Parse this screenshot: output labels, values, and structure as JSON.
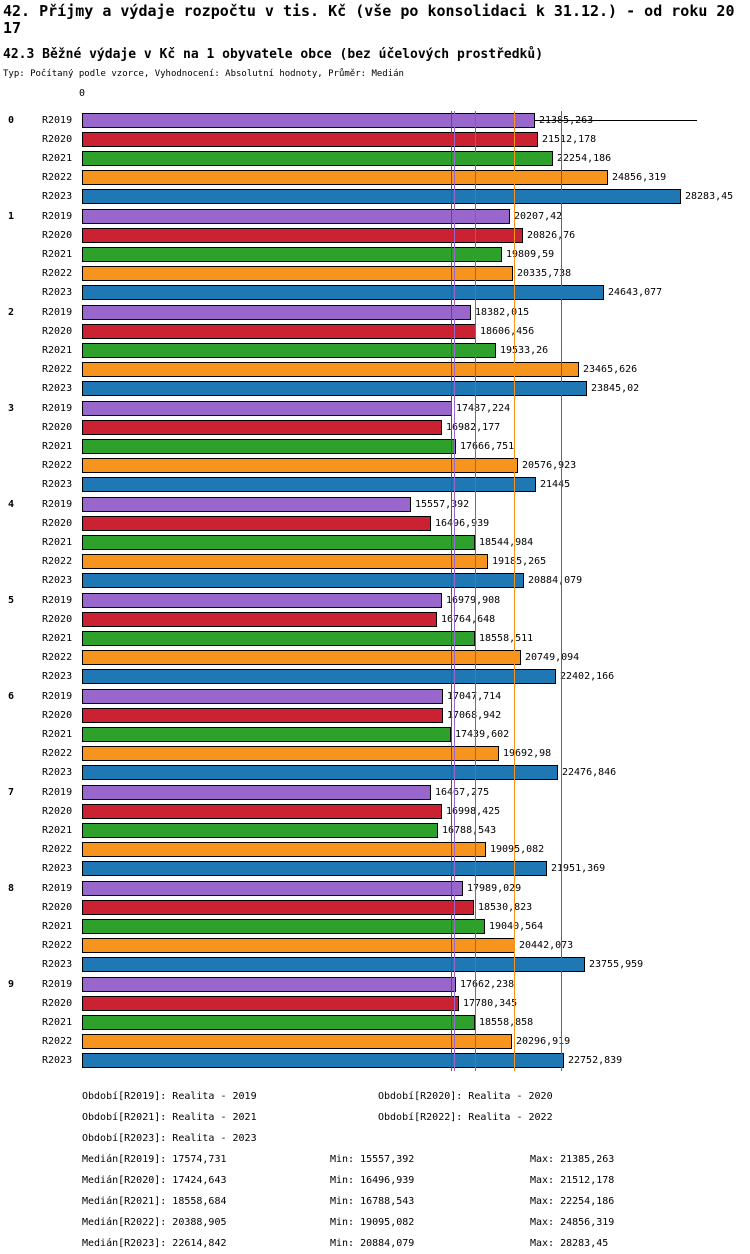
{
  "titles": {
    "line1": "42. Příjmy a výdaje rozpočtu v tis. Kč (vše po konsolidaci k 31.12.) - od roku 2017",
    "line2": "42.3 Běžné výdaje v Kč na 1 obyvatele obce (bez účelových prostředků)",
    "subtitle": "Typ: Počítaný podle vzorce, Vyhodnocení: Absolutní hodnoty, Průměr: Medián"
  },
  "axis": {
    "zero_label": "0",
    "max": 29040
  },
  "chart_data": {
    "type": "bar",
    "orientation": "horizontal",
    "title": "42.3 Běžné výdaje v Kč na 1 obyvatele obce (bez účelových prostředků)",
    "categories": [
      "0",
      "1",
      "2",
      "3",
      "4",
      "5",
      "6",
      "7",
      "8",
      "9"
    ],
    "xlim": [
      0,
      29040
    ],
    "grid": false,
    "legend_position": "bottom",
    "series": [
      {
        "name": "R2019",
        "color": "#9966CC",
        "median": 17574.731,
        "median_label": "17574,731",
        "values": [
          21385.263,
          20207.42,
          18382.015,
          17487.224,
          15557.392,
          16979.908,
          17047.714,
          16467.275,
          17989.029,
          17662.238
        ],
        "labels": [
          "21385,263",
          "20207,42",
          "18382,015",
          "17487,224",
          "15557,392",
          "16979,908",
          "17047,714",
          "16467,275",
          "17989,029",
          "17662,238"
        ]
      },
      {
        "name": "R2020",
        "color": "#CB2233",
        "median": 17424.643,
        "median_label": "17424,643",
        "values": [
          21512.178,
          20826.76,
          18606.456,
          16982.177,
          16496.939,
          16764.648,
          17068.942,
          16998.425,
          18530.823,
          17780.345
        ],
        "labels": [
          "21512,178",
          "20826,76",
          "18606,456",
          "16982,177",
          "16496,939",
          "16764,648",
          "17068,942",
          "16998,425",
          "18530,823",
          "17780,345"
        ]
      },
      {
        "name": "R2021",
        "color": "#2EA12C",
        "median": 18558.684,
        "median_label": "18558,684",
        "values": [
          22254.186,
          19809.59,
          19533.26,
          17666.751,
          18544.984,
          18558.511,
          17439.602,
          16788.543,
          19040.564,
          18558.858
        ],
        "labels": [
          "22254,186",
          "19809,59",
          "19533,26",
          "17666,751",
          "18544,984",
          "18558,511",
          "17439,602",
          "16788,543",
          "19040,564",
          "18558,858"
        ]
      },
      {
        "name": "R2022",
        "color": "#F7941E",
        "median": 20388.905,
        "median_label": "20388,905",
        "values": [
          24856.319,
          20335.738,
          23465.626,
          20576.923,
          19185.265,
          20749.094,
          19692.98,
          19095.082,
          20442.073,
          20296.919
        ],
        "labels": [
          "24856,319",
          "20335,738",
          "23465,626",
          "20576,923",
          "19185,265",
          "20749,094",
          "19692,98",
          "19095,082",
          "20442,073",
          "20296,919"
        ]
      },
      {
        "name": "R2023",
        "color": "#1F77B4",
        "median": 22614.842,
        "median_label": "22614,842",
        "values": [
          28283.45,
          24643.077,
          23845.02,
          21445,
          20884.079,
          22402.166,
          22476.846,
          21951.369,
          23755.959,
          22752.839
        ],
        "labels": [
          "28283,45",
          "24643,077",
          "23845,02",
          "21445",
          "20884,079",
          "22402,166",
          "22476,846",
          "21951,369",
          "23755,959",
          "22752,839"
        ]
      }
    ]
  },
  "legend_rows": [
    [
      "Období[R2019]: Realita - 2019",
      "Období[R2020]: Realita - 2020"
    ],
    [
      "Období[R2021]: Realita - 2021",
      "Období[R2022]: Realita - 2022"
    ],
    [
      "Období[R2023]: Realita - 2023",
      ""
    ]
  ],
  "stats_rows": [
    [
      "Medián[R2019]: 17574,731",
      "Min: 15557,392",
      "Max: 21385,263"
    ],
    [
      "Medián[R2020]: 17424,643",
      "Min: 16496,939",
      "Max: 21512,178"
    ],
    [
      "Medián[R2021]: 18558,684",
      "Min: 16788,543",
      "Max: 22254,186"
    ],
    [
      "Medián[R2022]: 20388,905",
      "Min: 19095,082",
      "Max: 24856,319"
    ],
    [
      "Medián[R2023]: 22614,842",
      "Min: 20884,079",
      "Max: 28283,45"
    ]
  ]
}
